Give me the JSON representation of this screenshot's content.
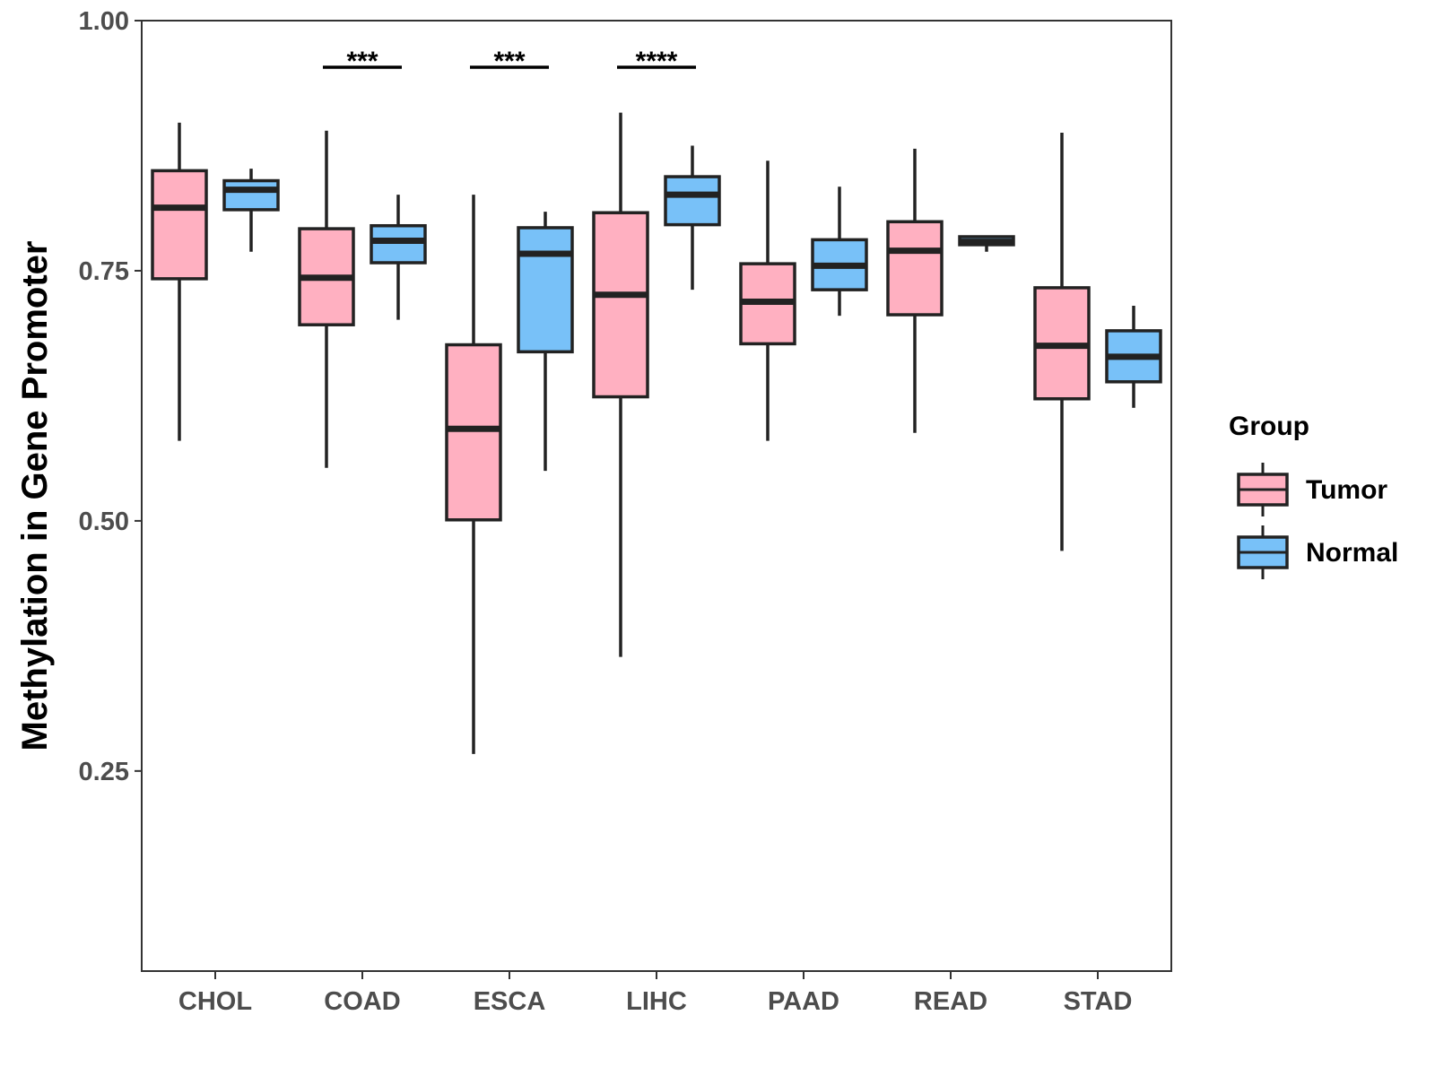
{
  "chart_data": {
    "type": "boxplot",
    "title": "",
    "xlabel": "",
    "ylabel": "Methylation in Gene Promoter",
    "ylim": [
      0.05,
      1.0
    ],
    "yticks": [
      "0.25",
      "0.50",
      "0.75",
      "1.00"
    ],
    "categories": [
      "CHOL",
      "COAD",
      "ESCA",
      "LIHC",
      "PAAD",
      "READ",
      "STAD"
    ],
    "legend": {
      "title": "Group",
      "placement": "right",
      "entries": [
        {
          "name": "Tumor",
          "color": "#FFB0C1"
        },
        {
          "name": "Normal",
          "color": "#78C1F8"
        }
      ]
    },
    "series": [
      {
        "name": "Tumor",
        "color": "#FFB0C1",
        "boxes": [
          {
            "min": 0.58,
            "q1": 0.742,
            "median": 0.813,
            "q3": 0.85,
            "max": 0.898
          },
          {
            "min": 0.553,
            "q1": 0.696,
            "median": 0.743,
            "q3": 0.792,
            "max": 0.89
          },
          {
            "min": 0.267,
            "q1": 0.501,
            "median": 0.592,
            "q3": 0.676,
            "max": 0.826
          },
          {
            "min": 0.364,
            "q1": 0.624,
            "median": 0.726,
            "q3": 0.808,
            "max": 0.908
          },
          {
            "min": 0.58,
            "q1": 0.677,
            "median": 0.719,
            "q3": 0.757,
            "max": 0.86
          },
          {
            "min": 0.588,
            "q1": 0.706,
            "median": 0.77,
            "q3": 0.799,
            "max": 0.872
          },
          {
            "min": 0.47,
            "q1": 0.622,
            "median": 0.675,
            "q3": 0.733,
            "max": 0.888
          }
        ]
      },
      {
        "name": "Normal",
        "color": "#78C1F8",
        "boxes": [
          {
            "min": 0.769,
            "q1": 0.811,
            "median": 0.831,
            "q3": 0.84,
            "max": 0.852
          },
          {
            "min": 0.701,
            "q1": 0.758,
            "median": 0.78,
            "q3": 0.795,
            "max": 0.826
          },
          {
            "min": 0.55,
            "q1": 0.669,
            "median": 0.767,
            "q3": 0.793,
            "max": 0.809
          },
          {
            "min": 0.731,
            "q1": 0.796,
            "median": 0.826,
            "q3": 0.844,
            "max": 0.875
          },
          {
            "min": 0.705,
            "q1": 0.731,
            "median": 0.755,
            "q3": 0.781,
            "max": 0.834
          },
          {
            "min": 0.769,
            "q1": 0.776,
            "median": 0.779,
            "q3": 0.784,
            "max": 0.785
          },
          {
            "min": 0.613,
            "q1": 0.639,
            "median": 0.664,
            "q3": 0.69,
            "max": 0.715
          }
        ]
      }
    ],
    "significance": [
      {
        "category": "COAD",
        "label": "***"
      },
      {
        "category": "ESCA",
        "label": "***"
      },
      {
        "category": "LIHC",
        "label": "****"
      }
    ]
  }
}
